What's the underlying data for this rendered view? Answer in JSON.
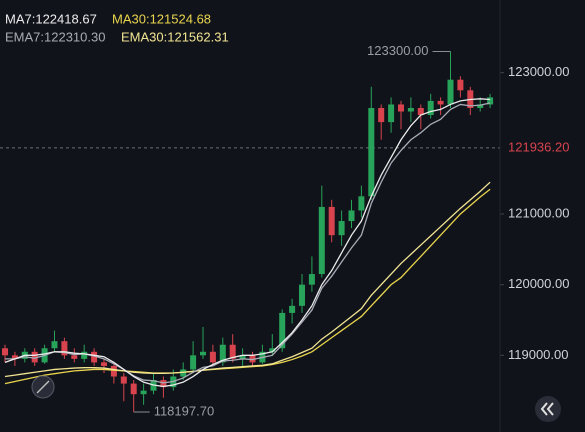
{
  "chart_data": {
    "type": "candlestick",
    "up_color": "#27a35a",
    "down_color": "#d8434d",
    "open": [
      119100,
      119000,
      118950,
      119050,
      118900,
      119100,
      119200,
      119000,
      118950,
      119050,
      118900,
      118850,
      118700,
      118600,
      118450,
      118500,
      118650,
      118550,
      118700,
      118800,
      119000,
      119050,
      118900,
      119150,
      118950,
      119000,
      118900,
      119050,
      119100,
      119600,
      119700,
      120000,
      120150,
      121100,
      120700,
      120900,
      121050,
      121250,
      122500,
      122300,
      122550,
      122450,
      122500,
      122400,
      122600,
      122550,
      122900,
      122750,
      122500,
      122550
    ],
    "high": [
      119150,
      119050,
      119100,
      119100,
      119150,
      119350,
      119250,
      119100,
      119150,
      119100,
      118950,
      118900,
      118750,
      118650,
      118600,
      118750,
      118700,
      118800,
      118900,
      119200,
      119400,
      119150,
      119250,
      119300,
      119100,
      119050,
      119150,
      119300,
      119650,
      119800,
      120150,
      120400,
      121400,
      121200,
      121050,
      121200,
      121400,
      122800,
      122550,
      122650,
      122600,
      122650,
      122550,
      122700,
      122650,
      123300,
      122950,
      122800,
      122650,
      122700
    ],
    "low": [
      118900,
      118850,
      118900,
      118850,
      118880,
      119050,
      118950,
      118900,
      118900,
      118850,
      118750,
      118600,
      118350,
      118197.7,
      118300,
      118450,
      118400,
      118500,
      118650,
      118750,
      118950,
      118850,
      118850,
      118900,
      118850,
      118850,
      118880,
      119000,
      119050,
      119450,
      119600,
      119900,
      120100,
      120600,
      120550,
      120800,
      120950,
      121200,
      122050,
      122150,
      122200,
      122300,
      122200,
      122350,
      122400,
      122500,
      122650,
      122400,
      122450,
      122500
    ],
    "close": [
      119000,
      118950,
      119050,
      118900,
      119100,
      119200,
      119000,
      118950,
      119050,
      118900,
      118850,
      118700,
      118600,
      118450,
      118500,
      118650,
      118550,
      118700,
      118800,
      119000,
      119050,
      118900,
      119150,
      118950,
      119000,
      118900,
      119050,
      119100,
      119600,
      119700,
      120000,
      120150,
      121100,
      120700,
      120900,
      121050,
      121250,
      122500,
      122300,
      122550,
      122450,
      122500,
      122400,
      122600,
      122550,
      122900,
      122750,
      122500,
      122550,
      122650
    ],
    "series": [
      {
        "name": "MA7:122418.67",
        "color": "#ececec",
        "values": [
          118900,
          118950,
          119000,
          119000,
          119020,
          119050,
          119050,
          119030,
          119020,
          119000,
          118980,
          118900,
          118800,
          118700,
          118620,
          118580,
          118560,
          118580,
          118620,
          118700,
          118800,
          118870,
          118930,
          118970,
          119000,
          119000,
          119020,
          119050,
          119180,
          119320,
          119500,
          119700,
          120000,
          120200,
          120450,
          120700,
          120900,
          121250,
          121550,
          121800,
          122050,
          122250,
          122400,
          122450,
          122480,
          122550,
          122600,
          122620,
          122630,
          122620
        ]
      },
      {
        "name": "MA30:121524.68",
        "color": "#e8d44d",
        "values": [
          118600,
          118630,
          118660,
          118690,
          118720,
          118740,
          118760,
          118780,
          118790,
          118800,
          118800,
          118790,
          118780,
          118770,
          118760,
          118750,
          118750,
          118750,
          118760,
          118770,
          118790,
          118800,
          118810,
          118820,
          118830,
          118840,
          118850,
          118870,
          118900,
          118940,
          118990,
          119050,
          119150,
          119250,
          119350,
          119450,
          119550,
          119700,
          119850,
          120000,
          120100,
          120250,
          120400,
          120550,
          120700,
          120850,
          121000,
          121120,
          121240,
          121350
        ]
      },
      {
        "name": "EMA7:122310.30",
        "color": "#a9abb5",
        "values": [
          118950,
          118950,
          118980,
          118960,
          119000,
          119050,
          119040,
          119010,
          119020,
          118990,
          118950,
          118880,
          118800,
          118710,
          118650,
          118640,
          118610,
          118630,
          118680,
          118760,
          118830,
          118850,
          118920,
          118930,
          118950,
          118940,
          118970,
          119000,
          119150,
          119300,
          119470,
          119640,
          119950,
          120120,
          120320,
          120520,
          120700,
          121150,
          121450,
          121720,
          121900,
          122050,
          122150,
          122270,
          122340,
          122480,
          122550,
          122530,
          122540,
          122570
        ]
      },
      {
        "name": "EMA30:121562.31",
        "color": "#f1e592",
        "values": [
          118700,
          118720,
          118740,
          118760,
          118780,
          118800,
          118810,
          118820,
          118825,
          118825,
          118820,
          118800,
          118780,
          118760,
          118750,
          118745,
          118745,
          118750,
          118760,
          118775,
          118790,
          118805,
          118820,
          118830,
          118840,
          118850,
          118860,
          118880,
          118930,
          118980,
          119040,
          119100,
          119230,
          119330,
          119440,
          119550,
          119660,
          119850,
          120000,
          120150,
          120300,
          120430,
          120560,
          120690,
          120820,
          120950,
          121080,
          121200,
          121320,
          121450
        ]
      }
    ],
    "ylim": [
      117915,
      124028
    ],
    "yticks": [
      {
        "value": 119000,
        "label": "119000.00"
      },
      {
        "value": 120000,
        "label": "120000.00"
      },
      {
        "value": 121000,
        "label": "121000.00"
      },
      {
        "value": 123000,
        "label": "123000.00"
      }
    ],
    "current_price": {
      "value": 121936.2,
      "label": "121936.20",
      "color": "#d8434d"
    },
    "annotations": [
      {
        "value": 123300,
        "label": "123300.00"
      },
      {
        "value": 118197.7,
        "label": "118197.70"
      }
    ]
  }
}
